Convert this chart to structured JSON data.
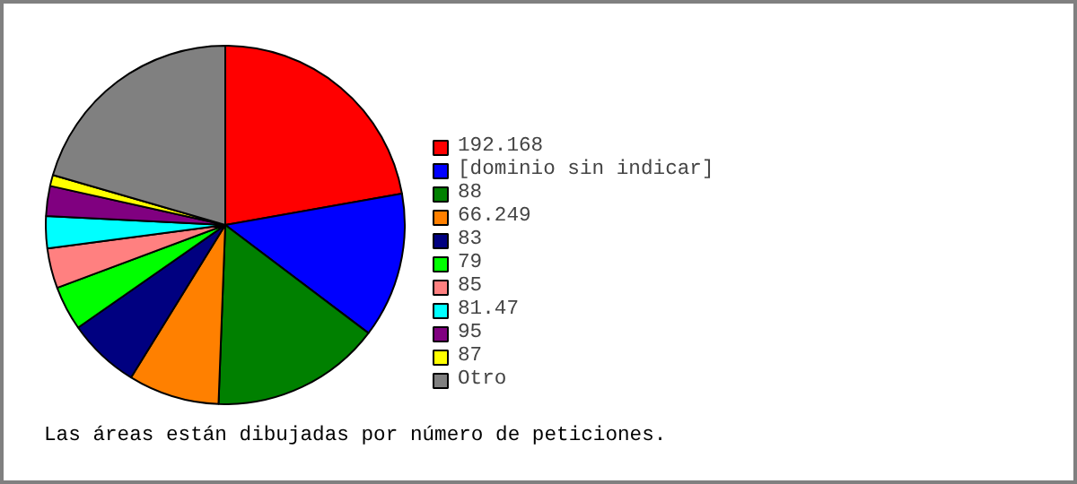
{
  "chart_data": {
    "type": "pie",
    "categories": [
      "192.168",
      "[dominio sin indicar]",
      "88",
      "66.249",
      "83",
      "79",
      "85",
      "81.47",
      "95",
      "87",
      "Otro"
    ],
    "values": [
      22.2,
      13.1,
      15.3,
      8.2,
      6.5,
      4,
      3.6,
      2.9,
      2.7,
      1,
      20.5
    ],
    "colors": [
      "#ff0000",
      "#0000ff",
      "#008000",
      "#ff8000",
      "#000080",
      "#00ff00",
      "#ff8080",
      "#00ffff",
      "#800080",
      "#ffff00",
      "#808080"
    ],
    "legend": "right",
    "annotations": [
      "Las áreas están dibujadas por número de peticiones."
    ]
  }
}
